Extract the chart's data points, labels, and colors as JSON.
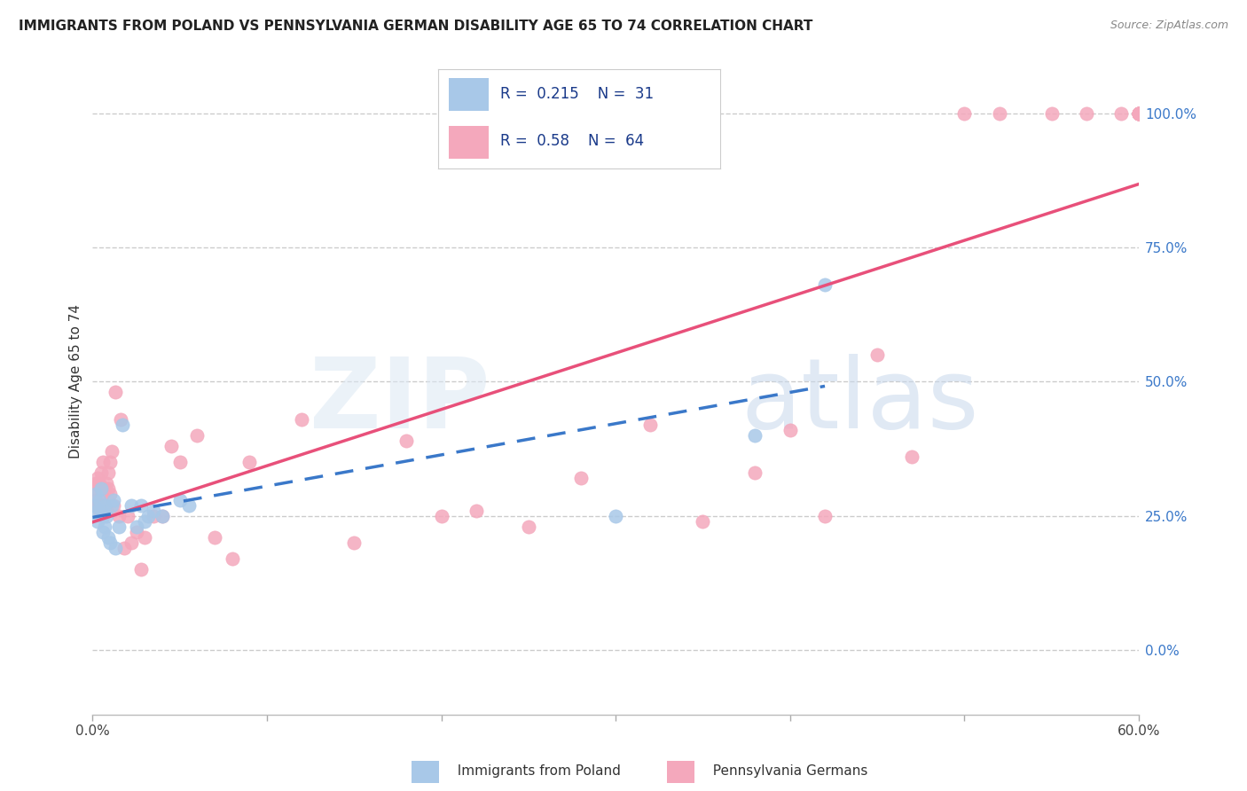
{
  "title": "IMMIGRANTS FROM POLAND VS PENNSYLVANIA GERMAN DISABILITY AGE 65 TO 74 CORRELATION CHART",
  "source": "Source: ZipAtlas.com",
  "ylabel": "Disability Age 65 to 74",
  "legend_label1": "Immigrants from Poland",
  "legend_label2": "Pennsylvania Germans",
  "R1": 0.215,
  "N1": 31,
  "R2": 0.58,
  "N2": 64,
  "color_blue": "#a8c8e8",
  "color_pink": "#f4a8bc",
  "trendline_blue": "#3a78c9",
  "trendline_pink": "#e8507a",
  "xlim": [
    0.0,
    0.6
  ],
  "ylim": [
    -0.12,
    1.12
  ],
  "xticks": [
    0.0,
    0.1,
    0.2,
    0.3,
    0.4,
    0.5,
    0.6
  ],
  "yticks": [
    0.0,
    0.25,
    0.5,
    0.75,
    1.0
  ],
  "poland_x": [
    0.001,
    0.002,
    0.003,
    0.003,
    0.004,
    0.005,
    0.005,
    0.006,
    0.006,
    0.007,
    0.007,
    0.008,
    0.009,
    0.01,
    0.011,
    0.012,
    0.013,
    0.015,
    0.017,
    0.022,
    0.025,
    0.028,
    0.03,
    0.032,
    0.035,
    0.04,
    0.05,
    0.055,
    0.3,
    0.38,
    0.42
  ],
  "poland_y": [
    0.27,
    0.29,
    0.26,
    0.24,
    0.28,
    0.3,
    0.26,
    0.25,
    0.22,
    0.27,
    0.23,
    0.25,
    0.21,
    0.2,
    0.27,
    0.28,
    0.19,
    0.23,
    0.42,
    0.27,
    0.23,
    0.27,
    0.24,
    0.25,
    0.26,
    0.25,
    0.28,
    0.27,
    0.25,
    0.4,
    0.68
  ],
  "pagerman_x": [
    0.001,
    0.002,
    0.002,
    0.003,
    0.003,
    0.004,
    0.004,
    0.005,
    0.005,
    0.006,
    0.006,
    0.007,
    0.007,
    0.008,
    0.008,
    0.009,
    0.009,
    0.01,
    0.01,
    0.011,
    0.012,
    0.013,
    0.015,
    0.016,
    0.018,
    0.02,
    0.022,
    0.025,
    0.028,
    0.03,
    0.035,
    0.04,
    0.045,
    0.05,
    0.06,
    0.07,
    0.08,
    0.09,
    0.12,
    0.15,
    0.18,
    0.2,
    0.22,
    0.25,
    0.28,
    0.32,
    0.35,
    0.38,
    0.4,
    0.42,
    0.45,
    0.47,
    0.5,
    0.52,
    0.55,
    0.57,
    0.59,
    0.6,
    0.6,
    0.6,
    0.6,
    0.6,
    0.6,
    0.6
  ],
  "pagerman_y": [
    0.3,
    0.31,
    0.28,
    0.32,
    0.27,
    0.31,
    0.26,
    0.3,
    0.33,
    0.29,
    0.35,
    0.27,
    0.3,
    0.31,
    0.26,
    0.3,
    0.33,
    0.29,
    0.35,
    0.37,
    0.27,
    0.48,
    0.25,
    0.43,
    0.19,
    0.25,
    0.2,
    0.22,
    0.15,
    0.21,
    0.25,
    0.25,
    0.38,
    0.35,
    0.4,
    0.21,
    0.17,
    0.35,
    0.43,
    0.2,
    0.39,
    0.25,
    0.26,
    0.23,
    0.32,
    0.42,
    0.24,
    0.33,
    0.41,
    0.25,
    0.55,
    0.36,
    1.0,
    1.0,
    1.0,
    1.0,
    1.0,
    1.0,
    1.0,
    1.0,
    1.0,
    1.0,
    1.0,
    1.0
  ]
}
